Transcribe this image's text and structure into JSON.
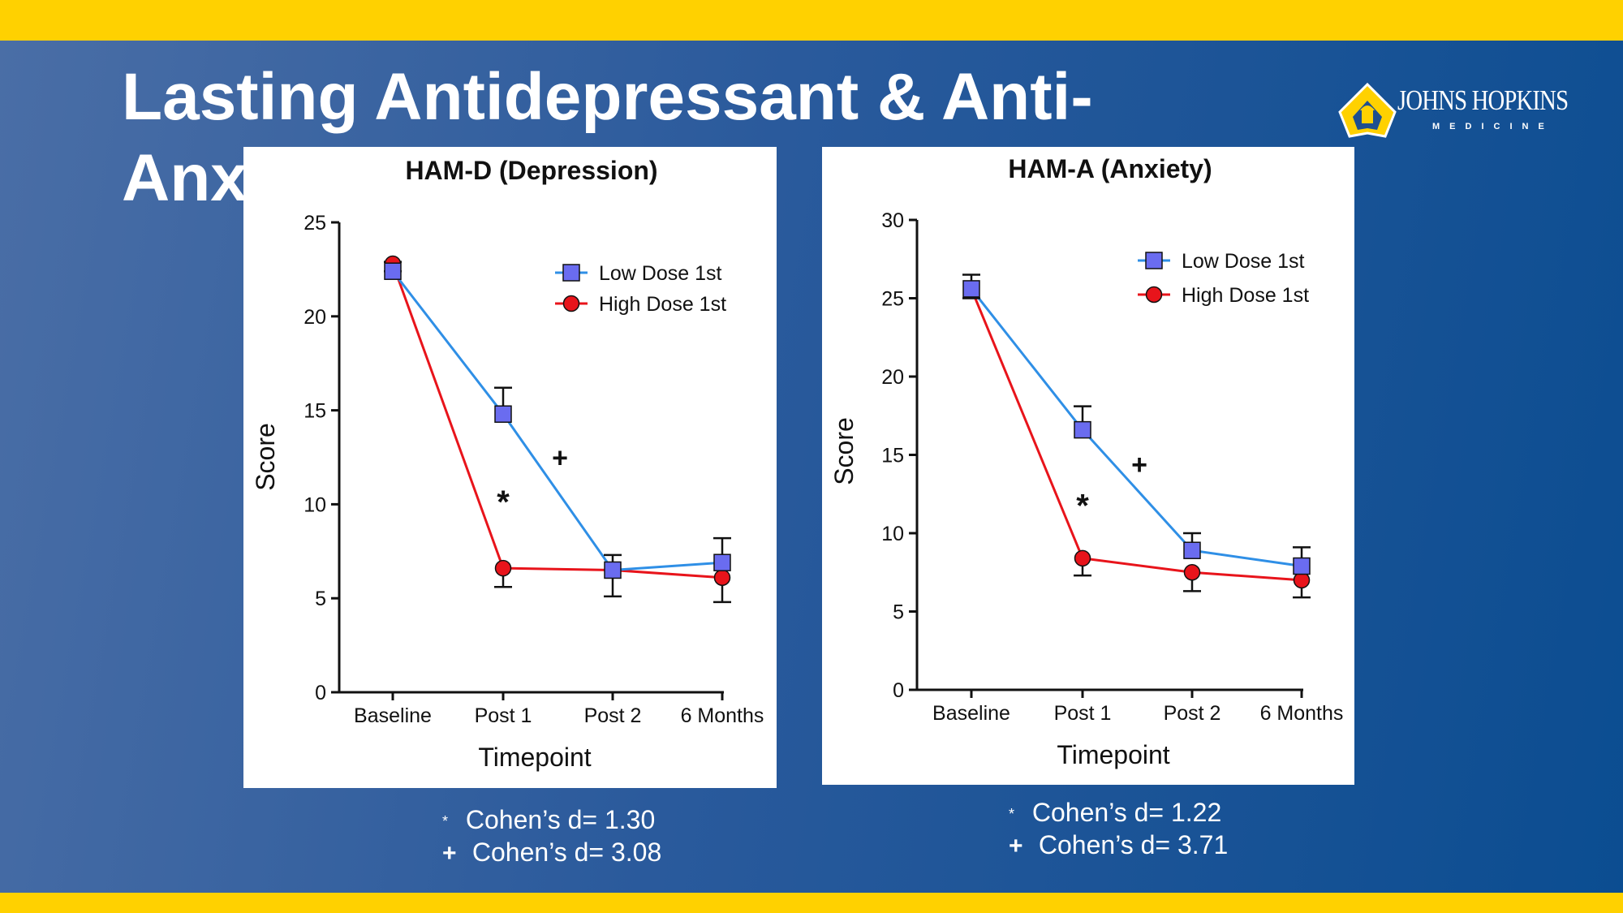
{
  "slide": {
    "title": "Lasting Antidepressant & Anti-Anxiety",
    "logo": {
      "name": "JOHNS HOPKINS",
      "sub": "MEDICINE"
    },
    "colors": {
      "background": "#1f5699",
      "accent_bar": "#ffd100",
      "low_dose": "#6a6cf0",
      "low_dose_line": "#2f8fe6",
      "high_dose": "#e8141b"
    }
  },
  "chart_data": [
    {
      "type": "line",
      "title": "HAM-D (Depression)",
      "xlabel": "Timepoint",
      "ylabel": "Score",
      "categories": [
        "Baseline",
        "Post 1",
        "Post 2",
        "6 Months"
      ],
      "ylim": [
        0,
        25
      ],
      "yticks": [
        0,
        5,
        10,
        15,
        20,
        25
      ],
      "series": [
        {
          "name": "Low Dose 1st",
          "marker": "square",
          "values": [
            22.4,
            14.8,
            6.5,
            6.9
          ],
          "errors": [
            0.5,
            1.4,
            0.8,
            1.3
          ]
        },
        {
          "name": "High Dose 1st",
          "marker": "circle",
          "values": [
            22.8,
            6.6,
            6.5,
            6.1
          ],
          "errors": [
            0.4,
            1.0,
            1.4,
            1.3
          ]
        }
      ],
      "annotations": [
        {
          "text": "*",
          "x": "Post 1",
          "y": 10.5
        },
        {
          "text": "+",
          "x": "Post 1.5",
          "y": 12.5
        }
      ],
      "legend_position": "top-right",
      "notes": [
        {
          "symbol": "*",
          "text": "Cohen’s d= 1.30"
        },
        {
          "symbol": "+",
          "text": "Cohen’s d= 3.08"
        }
      ]
    },
    {
      "type": "line",
      "title": "HAM-A (Anxiety)",
      "xlabel": "Timepoint",
      "ylabel": "Score",
      "categories": [
        "Baseline",
        "Post 1",
        "Post 2",
        "6 Months"
      ],
      "ylim": [
        0,
        30
      ],
      "yticks": [
        0,
        5,
        10,
        15,
        20,
        25,
        30
      ],
      "series": [
        {
          "name": "Low Dose 1st",
          "marker": "square",
          "values": [
            25.6,
            16.6,
            8.9,
            7.9
          ],
          "errors": [
            0.9,
            1.5,
            1.1,
            1.2
          ]
        },
        {
          "name": "High Dose 1st",
          "marker": "circle",
          "values": [
            25.6,
            8.4,
            7.5,
            7.0
          ],
          "errors": [
            0.6,
            1.1,
            1.2,
            1.1
          ]
        }
      ],
      "annotations": [
        {
          "text": "*",
          "x": "Post 1",
          "y": 12.2
        },
        {
          "text": "+",
          "x": "Post 1.5",
          "y": 14.4
        }
      ],
      "legend_position": "top-right",
      "notes": [
        {
          "symbol": "*",
          "text": "Cohen’s d= 1.22"
        },
        {
          "symbol": "+",
          "text": "Cohen’s d= 3.71"
        }
      ]
    }
  ]
}
